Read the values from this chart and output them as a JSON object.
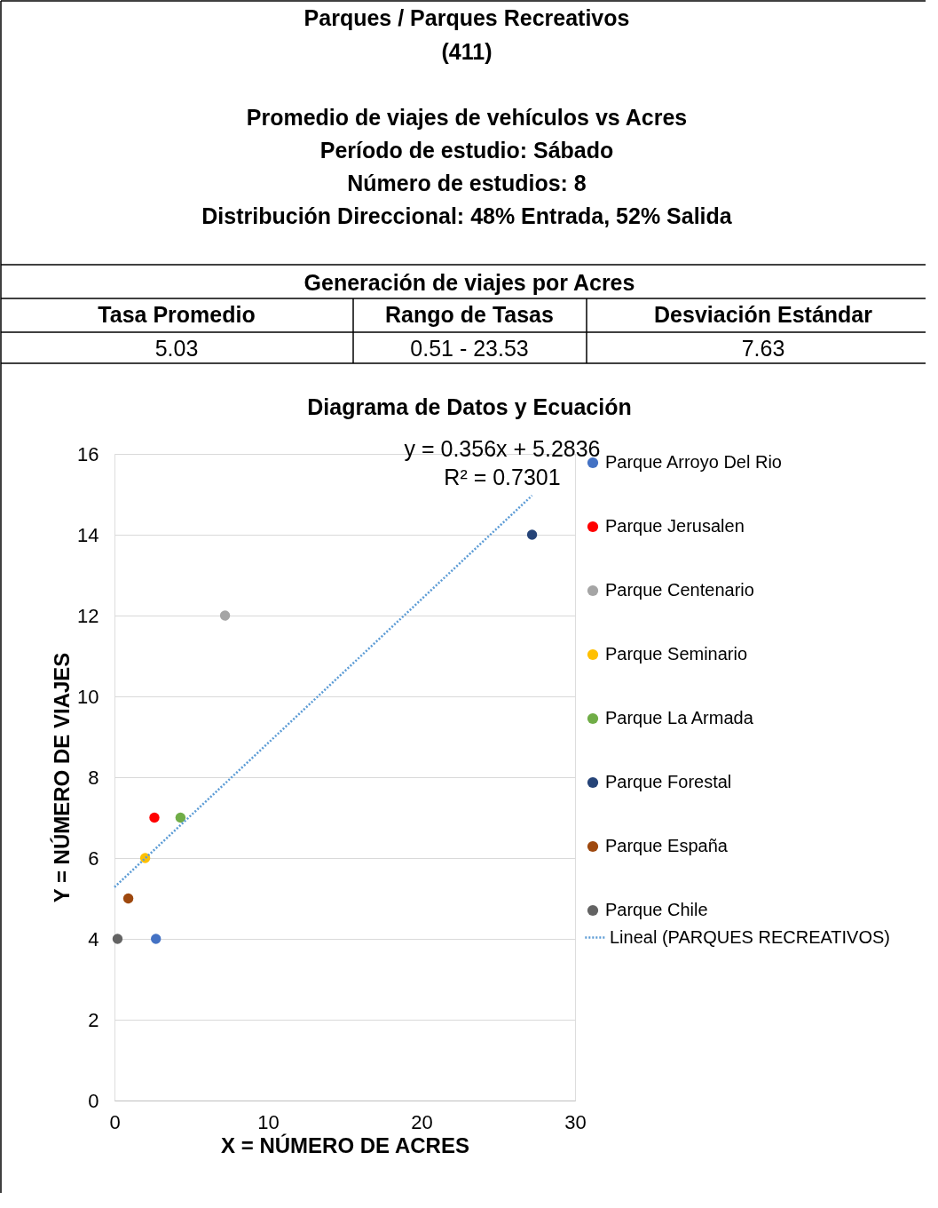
{
  "chart_data": {
    "type": "scatter",
    "title": "Diagrama de Datos y Ecuación",
    "xlabel": "X = NÚMERO DE ACRES",
    "ylabel": "Y = NÚMERO DE VIAJES",
    "annotations": [
      "Parques  / Parques Recreativos",
      "(411)",
      "Promedio de viajes de vehículos  vs  Acres",
      "Período de estudio: Sábado",
      "Número de estudios: 8",
      "Distribución Direccional: 48% Entrada, 52% Salida",
      "Generación de viajes por Acres",
      "Tasa Promedio",
      "Rango de Tasas",
      "Desviación Estándar",
      "5.03",
      "0.51 - 23.53",
      "7.63",
      "y = 0.356x + 5.2836",
      "R² = 0.7301"
    ],
    "xlim": [
      0,
      30
    ],
    "xticks": [
      0,
      10,
      20,
      30
    ],
    "ylim": [
      0,
      16
    ],
    "yticks": [
      0,
      2,
      4,
      6,
      8,
      10,
      12,
      14,
      16
    ],
    "grid": "y",
    "legend": "right",
    "marker": "circle",
    "series": [
      {
        "name": "Parque Arroyo Del Rio",
        "color": "#4472c4",
        "x": [
          2.7
        ],
        "values": [
          4
        ]
      },
      {
        "name": "Parque Jerusalen",
        "color": "#ff0000",
        "x": [
          2.6
        ],
        "values": [
          7
        ]
      },
      {
        "name": "Parque Centenario",
        "color": "#a5a5a5",
        "x": [
          7.2
        ],
        "values": [
          12
        ]
      },
      {
        "name": "Parque Seminario",
        "color": "#ffc000",
        "x": [
          2.0
        ],
        "values": [
          6
        ]
      },
      {
        "name": "Parque La Armada",
        "color": "#70ad47",
        "x": [
          4.3
        ],
        "values": [
          7
        ]
      },
      {
        "name": "Parque Forestal",
        "color": "#264478",
        "x": [
          27.2
        ],
        "values": [
          14
        ]
      },
      {
        "name": "Parque España",
        "color": "#9e480e",
        "x": [
          0.9
        ],
        "values": [
          5
        ]
      },
      {
        "name": "Parque Chile",
        "color": "#636363",
        "x": [
          0.2
        ],
        "values": [
          4
        ]
      },
      {
        "name": "Lineal (PARQUES RECREATIVOS)",
        "type": "line",
        "line_style": "dotted",
        "marker": "none",
        "color": "#5b9bd5",
        "x": [
          0,
          27.2
        ],
        "values": [
          5.28,
          14.97
        ]
      }
    ]
  }
}
